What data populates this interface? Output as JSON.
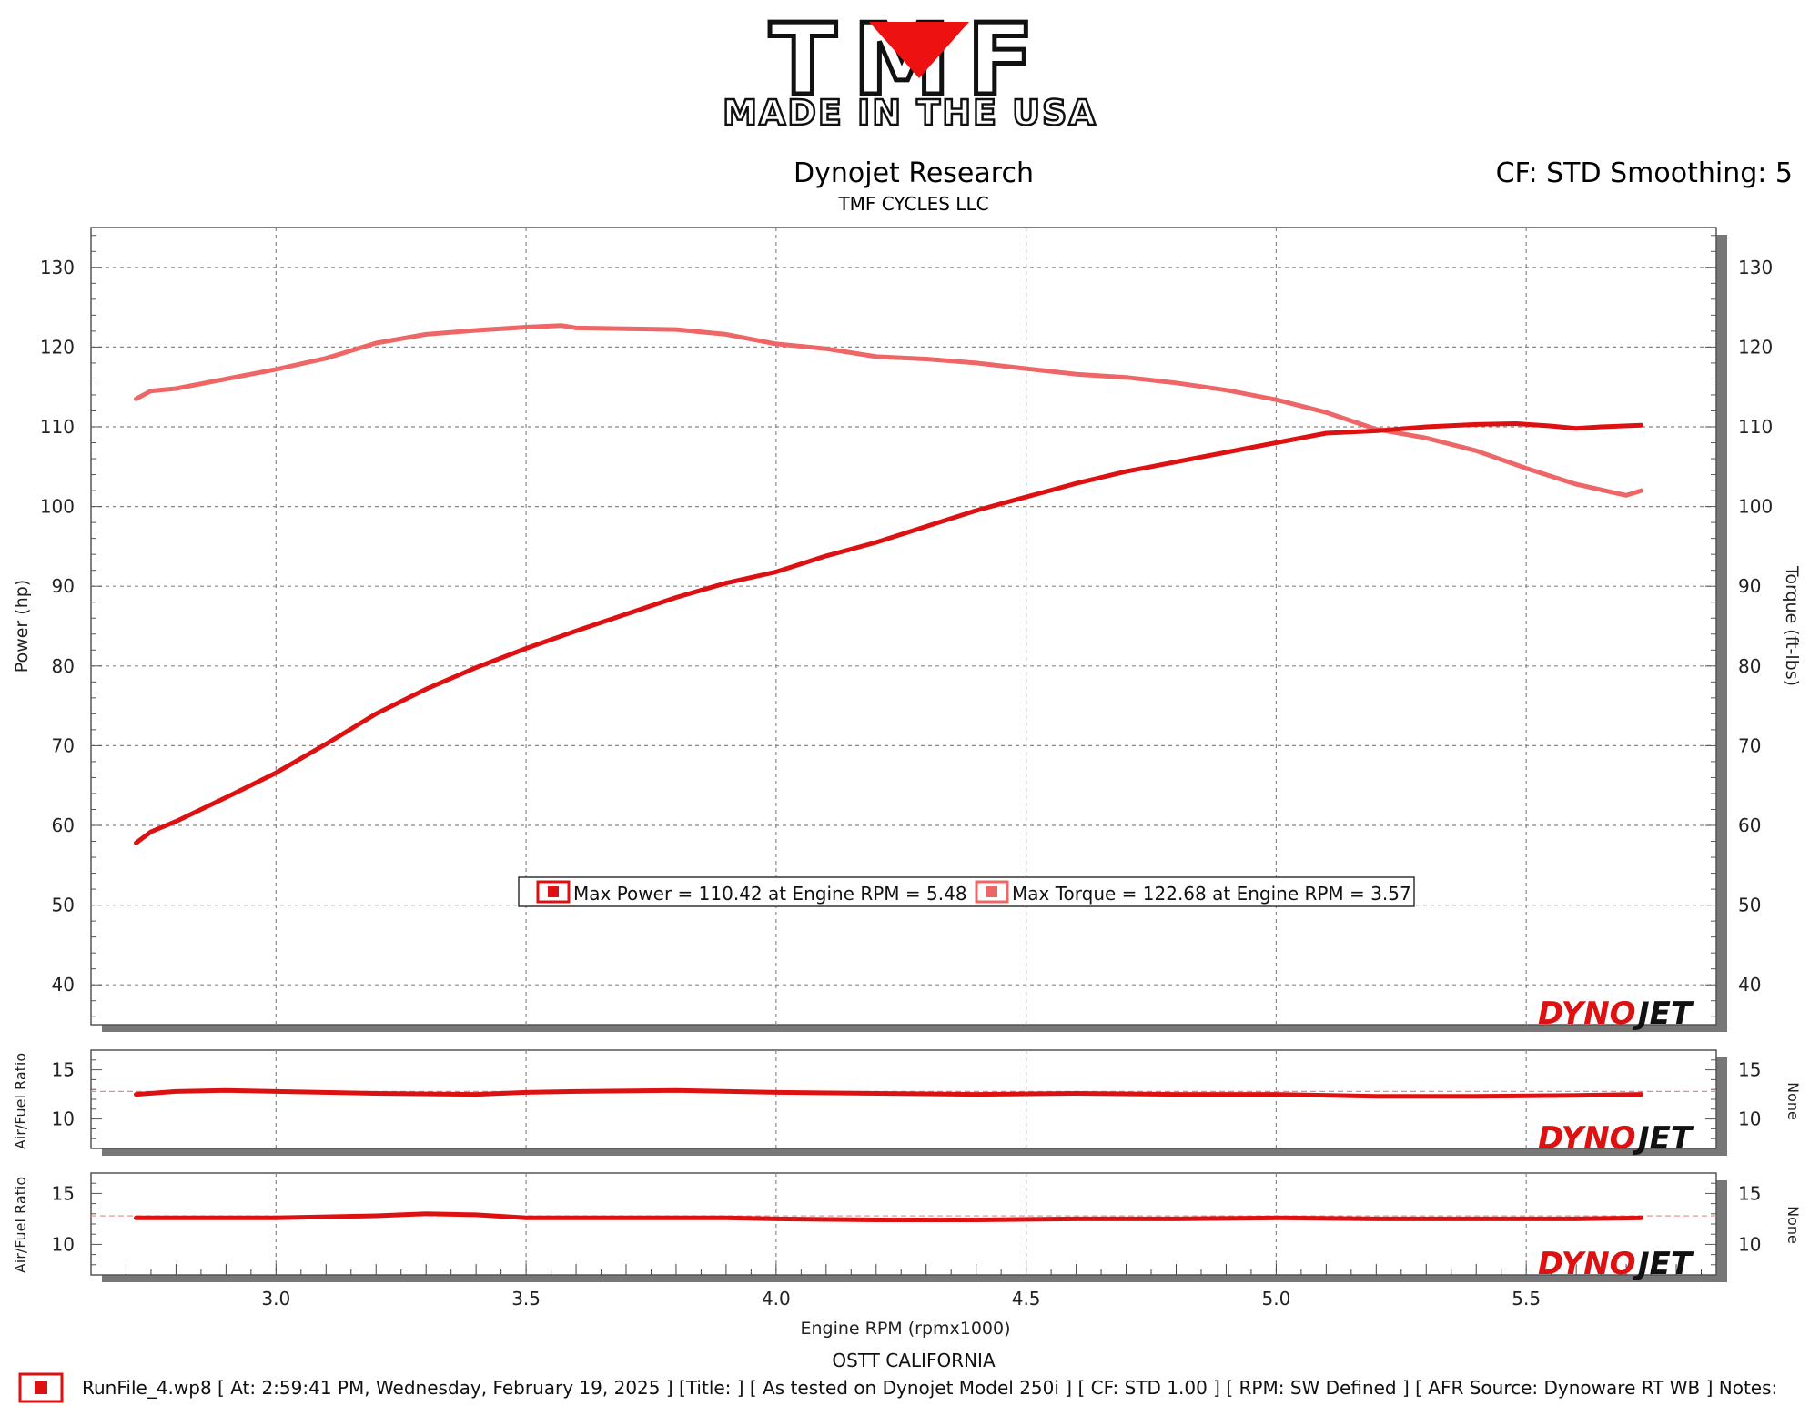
{
  "logo": {
    "brand": "TMF",
    "tagline": "MADE IN THE USA"
  },
  "header": {
    "title": "Dynojet Research",
    "subtitle": "TMF CYCLES LLC",
    "correction": "CF: STD Smoothing: 5"
  },
  "watermark": {
    "dyno": "DYNO",
    "jet": "JET"
  },
  "legend": {
    "max_power": "Max Power = 110.42 at Engine RPM = 5.48",
    "max_torque": "Max Torque = 122.68 at Engine RPM = 3.57"
  },
  "footer": {
    "location": "OSTT CALIFORNIA",
    "run_info": "RunFile_4.wp8 [ At: 2:59:41 PM, Wednesday, February 19, 2025 ] [Title: ]  [ As tested on Dynojet Model 250i ] [ CF: STD 1.00 ] [ RPM: SW Defined ] [ AFR Source: Dynoware RT WB ] Notes:"
  },
  "colors": {
    "power": "#dd1111",
    "torque": "#ee6666",
    "afr": "#dd1111",
    "target_line": "#e88888",
    "grid": "#888888"
  },
  "chart_data": [
    {
      "type": "line",
      "title": "Dynojet Research",
      "xlabel": "Engine RPM (rpmx1000)",
      "ylabel": "Power (hp)",
      "y2label": "Torque (ft-lbs)",
      "xlim": [
        2.63,
        5.88
      ],
      "ylim": [
        35,
        135
      ],
      "y2lim": [
        35,
        135
      ],
      "x_ticks": [
        3.0,
        3.5,
        4.0,
        4.5,
        5.0,
        5.5
      ],
      "y_ticks": [
        40,
        50,
        60,
        70,
        80,
        90,
        100,
        110,
        120,
        130
      ],
      "grid": true,
      "series": [
        {
          "name": "Max Power",
          "axis": "left",
          "x": [
            2.72,
            2.75,
            2.8,
            2.9,
            3.0,
            3.1,
            3.2,
            3.3,
            3.4,
            3.5,
            3.6,
            3.7,
            3.8,
            3.9,
            4.0,
            4.1,
            4.2,
            4.3,
            4.4,
            4.5,
            4.6,
            4.7,
            4.8,
            4.9,
            5.0,
            5.1,
            5.2,
            5.3,
            5.4,
            5.48,
            5.55,
            5.6,
            5.65,
            5.73
          ],
          "y": [
            57.8,
            59.2,
            60.5,
            63.5,
            66.6,
            70.2,
            74.0,
            77.1,
            79.8,
            82.2,
            84.4,
            86.5,
            88.6,
            90.4,
            91.8,
            93.8,
            95.5,
            97.5,
            99.5,
            101.2,
            102.9,
            104.4,
            105.6,
            106.8,
            108.0,
            109.2,
            109.5,
            110.0,
            110.3,
            110.4,
            110.1,
            109.8,
            110.0,
            110.2
          ]
        },
        {
          "name": "Max Torque",
          "axis": "right",
          "x": [
            2.72,
            2.75,
            2.8,
            2.9,
            3.0,
            3.1,
            3.2,
            3.3,
            3.4,
            3.5,
            3.57,
            3.6,
            3.7,
            3.8,
            3.9,
            4.0,
            4.1,
            4.2,
            4.3,
            4.4,
            4.5,
            4.6,
            4.7,
            4.8,
            4.9,
            5.0,
            5.1,
            5.2,
            5.3,
            5.4,
            5.5,
            5.6,
            5.7,
            5.73
          ],
          "y": [
            113.5,
            114.5,
            114.8,
            116.0,
            117.2,
            118.6,
            120.5,
            121.6,
            122.1,
            122.5,
            122.7,
            122.4,
            122.3,
            122.2,
            121.6,
            120.4,
            119.8,
            118.8,
            118.5,
            118.0,
            117.3,
            116.6,
            116.2,
            115.5,
            114.6,
            113.4,
            111.8,
            109.7,
            108.6,
            107.0,
            104.8,
            102.8,
            101.4,
            102.0
          ]
        }
      ]
    },
    {
      "type": "line",
      "ylabel": "Air/Fuel Ratio",
      "y2label": "None",
      "xlim": [
        2.63,
        5.88
      ],
      "ylim": [
        7,
        17
      ],
      "y_ticks": [
        10,
        15
      ],
      "reference_line": 12.8,
      "series": [
        {
          "x": [
            2.72,
            2.8,
            2.9,
            3.0,
            3.2,
            3.4,
            3.5,
            3.6,
            3.8,
            4.0,
            4.2,
            4.4,
            4.6,
            4.8,
            5.0,
            5.2,
            5.4,
            5.6,
            5.73
          ],
          "y": [
            12.5,
            12.8,
            12.9,
            12.8,
            12.6,
            12.5,
            12.7,
            12.8,
            12.9,
            12.7,
            12.6,
            12.5,
            12.6,
            12.5,
            12.5,
            12.3,
            12.3,
            12.4,
            12.5
          ]
        }
      ]
    },
    {
      "type": "line",
      "ylabel": "Air/Fuel Ratio",
      "y2label": "None",
      "xlim": [
        2.63,
        5.88
      ],
      "ylim": [
        7,
        17
      ],
      "y_ticks": [
        10,
        15
      ],
      "reference_line": 12.8,
      "series": [
        {
          "x": [
            2.72,
            2.8,
            3.0,
            3.2,
            3.3,
            3.4,
            3.5,
            3.7,
            3.9,
            4.0,
            4.2,
            4.4,
            4.6,
            4.8,
            5.0,
            5.2,
            5.4,
            5.6,
            5.73
          ],
          "y": [
            12.6,
            12.6,
            12.6,
            12.8,
            13.0,
            12.9,
            12.6,
            12.6,
            12.6,
            12.5,
            12.4,
            12.4,
            12.5,
            12.5,
            12.6,
            12.5,
            12.5,
            12.5,
            12.6
          ]
        }
      ]
    }
  ]
}
